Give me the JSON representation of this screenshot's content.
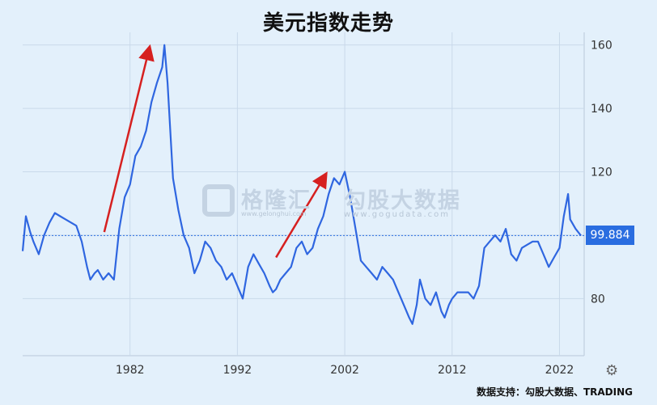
{
  "title": "美元指数走势",
  "watermark": {
    "brand": "格隆汇",
    "brand2": "勾股大数据",
    "url_left": "www.gelonghui.com",
    "url": "www.gogudata.com"
  },
  "current_value_label": "99.884",
  "source": "数据支持：勾股大数据、TRADING",
  "icons": {
    "settings": "gear-icon",
    "watermark_logo": "g-logo-icon"
  },
  "colors": {
    "line": "#2f66e0",
    "arrow": "#d62020",
    "background": "#e3f0fb",
    "grid": "#c9d9ea"
  },
  "chart_data": {
    "type": "line",
    "title": "美元指数走势",
    "xlabel": "",
    "ylabel": "",
    "x_ticks": [
      1982,
      1992,
      2002,
      2012,
      2022
    ],
    "y_ticks": [
      80,
      100,
      120,
      140,
      160
    ],
    "y_tick_labels": [
      "80",
      "",
      "120",
      "140",
      "160"
    ],
    "xlim": [
      1972,
      2024.3
    ],
    "ylim": [
      62,
      164
    ],
    "grid": true,
    "current_value": 99.884,
    "series": [
      {
        "x": [
          1972,
          1972.3,
          1972.7,
          1973,
          1973.5,
          1974,
          1974.5,
          1975,
          1975.5,
          1976,
          1976.5,
          1977,
          1977.5,
          1978,
          1978.3,
          1978.7,
          1979,
          1979.5,
          1980,
          1980.5,
          1981,
          1981.5,
          1982,
          1982.5,
          1983,
          1983.5,
          1984,
          1984.5,
          1985,
          1985.2,
          1985.5,
          1986,
          1986.5,
          1987,
          1987.5,
          1988,
          1988.5,
          1989,
          1989.5,
          1990,
          1990.5,
          1991,
          1991.5,
          1992,
          1992.5,
          1993,
          1993.5,
          1994,
          1994.5,
          1995,
          1995.3,
          1995.6,
          1996,
          1996.5,
          1997,
          1997.5,
          1998,
          1998.5,
          1999,
          1999.5,
          2000,
          2000.5,
          2001,
          2001.5,
          2002,
          2002.5,
          2003,
          2003.5,
          2004,
          2004.5,
          2005,
          2005.5,
          2006,
          2006.5,
          2007,
          2007.5,
          2008,
          2008.3,
          2008.7,
          2009,
          2009.5,
          2010,
          2010.5,
          2011,
          2011.3,
          2011.7,
          2012,
          2012.5,
          2013,
          2013.5,
          2014,
          2014.5,
          2015,
          2015.5,
          2016,
          2016.5,
          2017,
          2017.5,
          2018,
          2018.5,
          2019,
          2019.5,
          2020,
          2020.5,
          2021,
          2021.5,
          2022,
          2022.4,
          2022.8,
          2023,
          2023.5,
          2024
        ],
        "y": [
          95,
          106,
          101,
          98,
          94,
          100,
          104,
          107,
          106,
          105,
          104,
          103,
          98,
          90,
          86,
          88,
          89,
          86,
          88,
          86,
          102,
          112,
          116,
          125,
          128,
          133,
          142,
          148,
          153,
          160,
          148,
          118,
          108,
          100,
          96,
          88,
          92,
          98,
          96,
          92,
          90,
          86,
          88,
          84,
          80,
          90,
          94,
          91,
          88,
          84,
          82,
          83,
          86,
          88,
          90,
          96,
          98,
          94,
          96,
          102,
          106,
          113,
          118,
          116,
          120,
          112,
          102,
          92,
          90,
          88,
          86,
          90,
          88,
          86,
          82,
          78,
          74,
          72,
          78,
          86,
          80,
          78,
          82,
          76,
          74,
          78,
          80,
          82,
          82,
          82,
          80,
          84,
          96,
          98,
          100,
          98,
          102,
          94,
          92,
          96,
          97,
          98,
          98,
          94,
          90,
          93,
          96,
          106,
          113,
          105,
          102,
          99.884
        ]
      }
    ],
    "annotations": [
      {
        "type": "arrow",
        "from": [
          1979.6,
          101
        ],
        "to": [
          1983.8,
          159
        ]
      },
      {
        "type": "arrow",
        "from": [
          1995.6,
          93
        ],
        "to": [
          2000.2,
          119
        ]
      }
    ]
  }
}
